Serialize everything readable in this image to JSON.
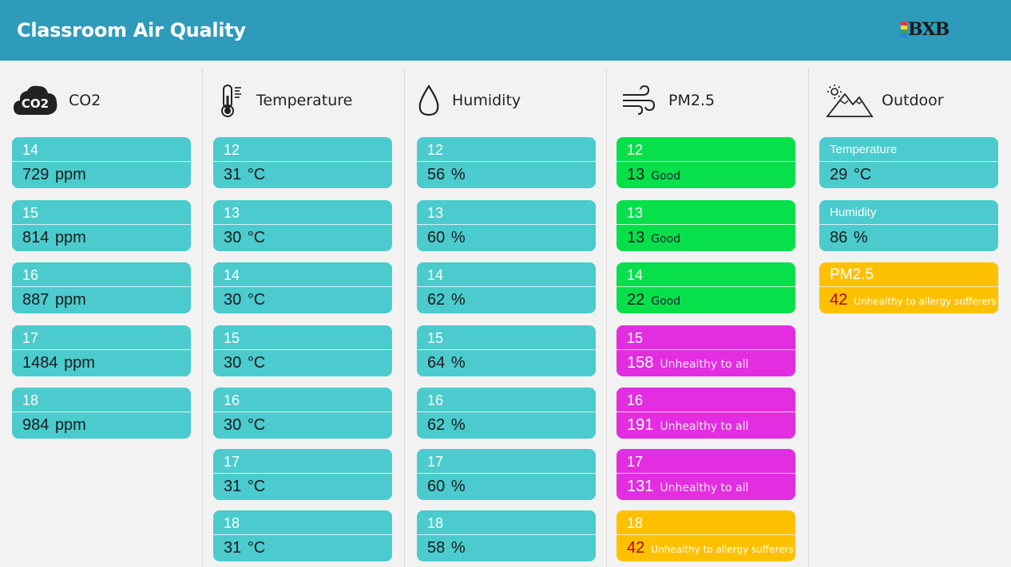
{
  "header": {
    "title": "Classroom Air Quality",
    "logo": "BXB"
  },
  "columns": {
    "co2": {
      "title": "CO2",
      "icon_text": "CO2",
      "items": [
        {
          "label": "14",
          "value": "729",
          "unit": "ppm"
        },
        {
          "label": "15",
          "value": "814",
          "unit": "ppm"
        },
        {
          "label": "16",
          "value": "887",
          "unit": "ppm"
        },
        {
          "label": "17",
          "value": "1484",
          "unit": "ppm"
        },
        {
          "label": "18",
          "value": "984",
          "unit": "ppm"
        }
      ]
    },
    "temperature": {
      "title": "Temperature",
      "items": [
        {
          "label": "12",
          "value": "31",
          "unit": "°C"
        },
        {
          "label": "13",
          "value": "30",
          "unit": "°C"
        },
        {
          "label": "14",
          "value": "30",
          "unit": "°C"
        },
        {
          "label": "15",
          "value": "30",
          "unit": "°C"
        },
        {
          "label": "16",
          "value": "30",
          "unit": "°C"
        },
        {
          "label": "17",
          "value": "31",
          "unit": "°C"
        },
        {
          "label": "18",
          "value": "31",
          "unit": "°C"
        }
      ]
    },
    "humidity": {
      "title": "Humidity",
      "items": [
        {
          "label": "12",
          "value": "56",
          "unit": "%"
        },
        {
          "label": "13",
          "value": "60",
          "unit": "%"
        },
        {
          "label": "14",
          "value": "62",
          "unit": "%"
        },
        {
          "label": "15",
          "value": "64",
          "unit": "%"
        },
        {
          "label": "16",
          "value": "62",
          "unit": "%"
        },
        {
          "label": "17",
          "value": "60",
          "unit": "%"
        },
        {
          "label": "18",
          "value": "58",
          "unit": "%"
        }
      ]
    },
    "pm25": {
      "title": "PM2.5",
      "items": [
        {
          "label": "12",
          "value": "13",
          "status": "Good"
        },
        {
          "label": "13",
          "value": "13",
          "status": "Good"
        },
        {
          "label": "14",
          "value": "22",
          "status": "Good"
        },
        {
          "label": "15",
          "value": "158",
          "status": "Unhealthy to all"
        },
        {
          "label": "16",
          "value": "191",
          "status": "Unhealthy to all"
        },
        {
          "label": "17",
          "value": "131",
          "status": "Unhealthy to all"
        },
        {
          "label": "18",
          "value": "42",
          "status": "Unhealthy to allergy sufferers"
        }
      ]
    },
    "outdoor": {
      "title": "Outdoor",
      "temperature": {
        "label": "Temperature",
        "value": "29",
        "unit": "°C"
      },
      "humidity": {
        "label": "Humidity",
        "value": "86",
        "unit": "%"
      },
      "pm25": {
        "label": "PM2.5",
        "value": "42",
        "status": "Unhealthy to allergy sufferers"
      }
    }
  },
  "colors": {
    "header": "#2e9bbb",
    "card": "#4bcbcd",
    "good": "#07e04b",
    "unhealthy_all": "#e22ee0",
    "unhealthy_allergy": "#fdc102"
  }
}
